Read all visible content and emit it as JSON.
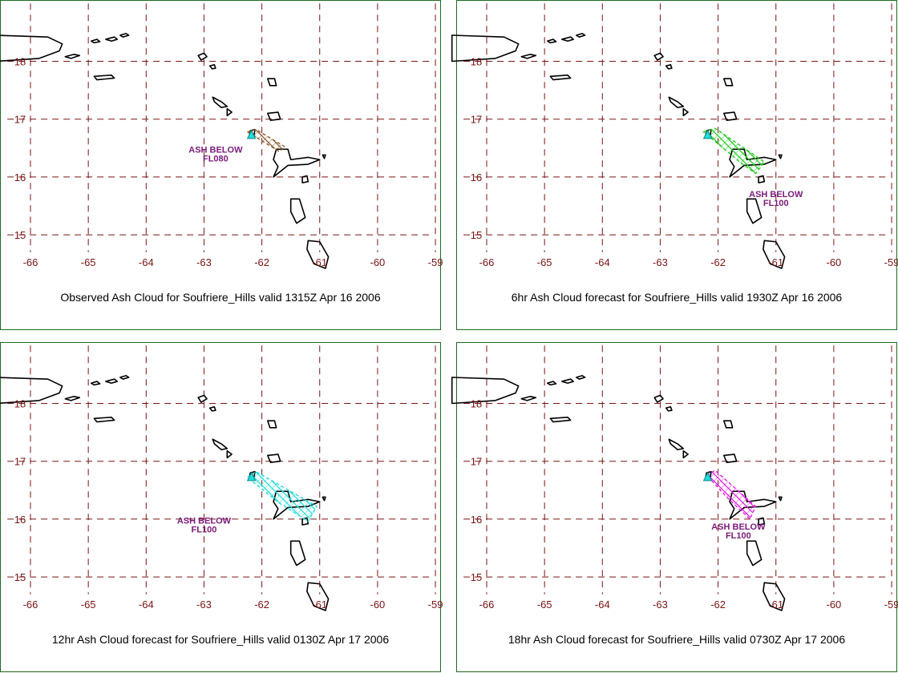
{
  "chart_data": {
    "type": "map",
    "x_ticks": [
      "-66",
      "-65",
      "-64",
      "-63",
      "-62",
      "-61",
      "-60",
      "-59"
    ],
    "y_ticks": [
      "18",
      "17",
      "16",
      "15"
    ],
    "xlim": [
      -66,
      -59
    ],
    "ylim": [
      14.6,
      19.0
    ],
    "grid": true,
    "panels": [
      {
        "caption": "Observed Ash Cloud for Soufriere_Hills valid 1315Z Apr 16 2006",
        "ash_label_line1": "ASH BELOW",
        "ash_label_line2": "FL080",
        "ash_color": "#8b5a2b",
        "ash_polygon": [
          [
            -62.25,
            16.78
          ],
          [
            -62.1,
            16.82
          ],
          [
            -61.6,
            16.52
          ],
          [
            -61.7,
            16.44
          ]
        ]
      },
      {
        "caption": "6hr Ash Cloud forecast for Soufriere_Hills valid 1930Z Apr 16 2006",
        "ash_label_line1": "ASH BELOW",
        "ash_label_line2": "FL100",
        "ash_color": "#22cc22",
        "ash_polygon": [
          [
            -62.25,
            16.78
          ],
          [
            -62.05,
            16.84
          ],
          [
            -61.2,
            16.26
          ],
          [
            -61.35,
            16.06
          ],
          [
            -61.6,
            16.24
          ]
        ]
      },
      {
        "caption": "12hr Ash Cloud forecast for Soufriere_Hills valid 0130Z Apr 17 2006",
        "ash_label_line1": "ASH BELOW",
        "ash_label_line2": "FL100",
        "ash_color": "#22dddd",
        "ash_polygon": [
          [
            -62.25,
            16.72
          ],
          [
            -62.1,
            16.82
          ],
          [
            -61.05,
            16.22
          ],
          [
            -61.2,
            15.96
          ],
          [
            -61.7,
            16.28
          ]
        ]
      },
      {
        "caption": "18hr Ash Cloud forecast for Soufriere_Hills valid 0730Z Apr 17 2006",
        "ash_label_line1": "ASH BELOW",
        "ash_label_line2": "FL100",
        "ash_color": "#dd22dd",
        "ash_polygon": [
          [
            -62.2,
            16.76
          ],
          [
            -62.05,
            16.84
          ],
          [
            -61.35,
            16.22
          ],
          [
            -61.45,
            16.0
          ],
          [
            -61.85,
            16.38
          ]
        ]
      }
    ]
  },
  "colors": {
    "grid": "#7a1414",
    "coast": "#000000",
    "volcano_marker": "#22dddd",
    "ash_label": "#7a1a7a",
    "panel_border": "#1f6a1f"
  }
}
